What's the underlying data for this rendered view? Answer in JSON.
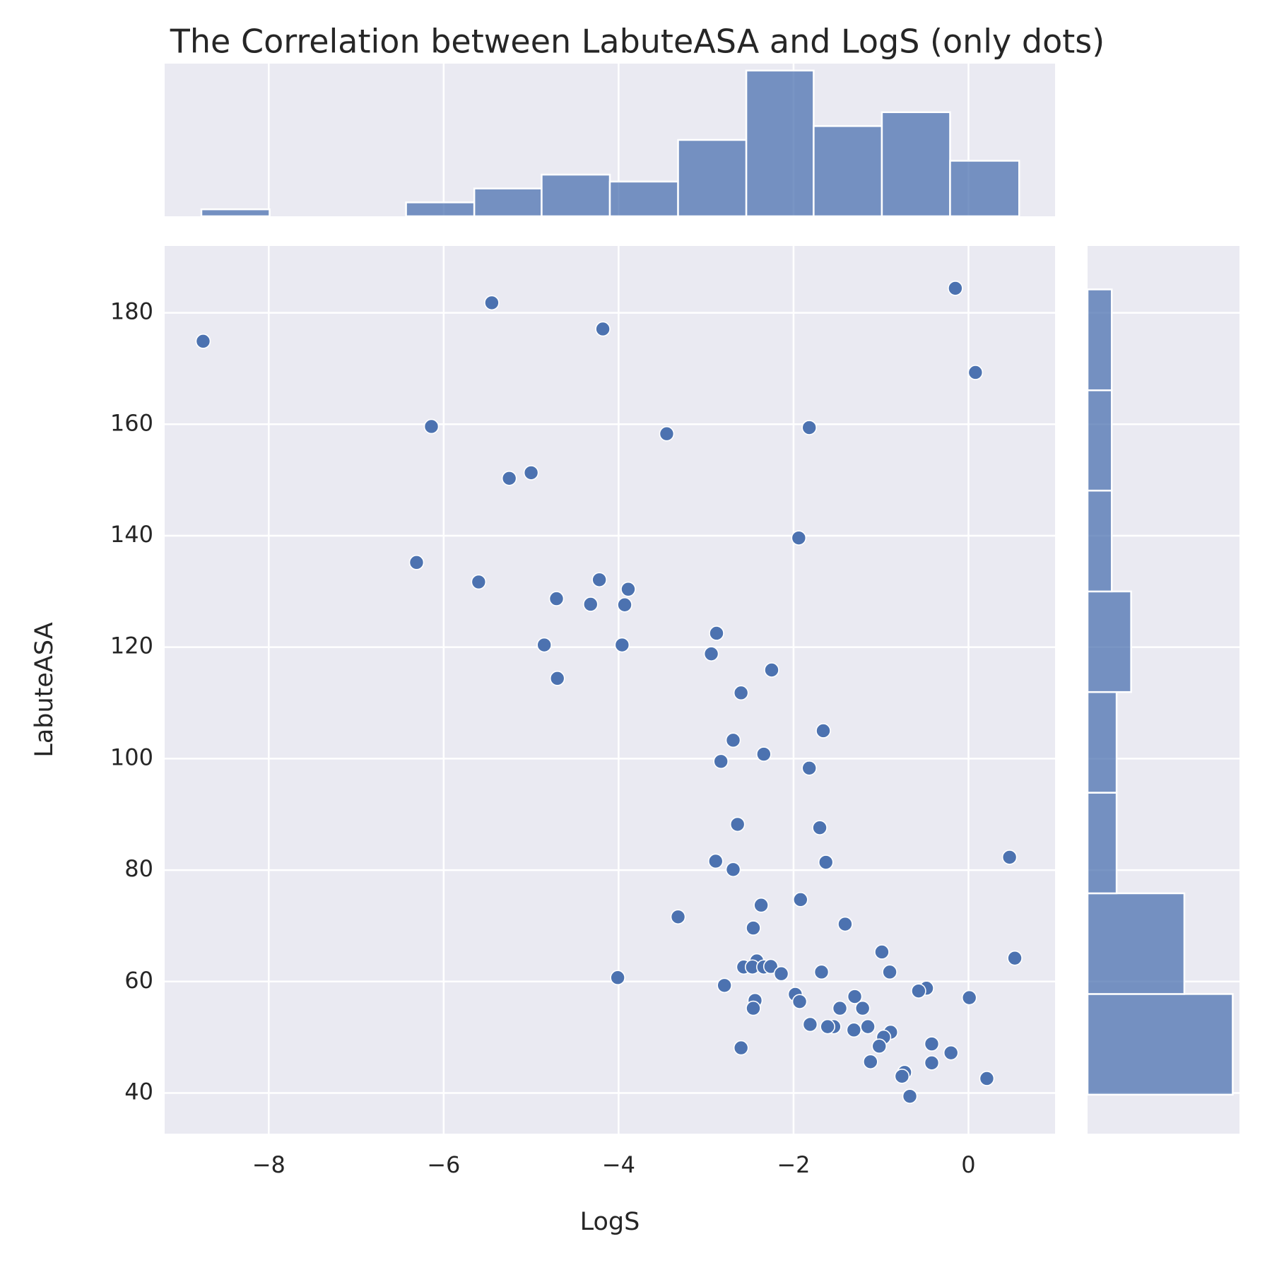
{
  "chart_data": [
    {
      "type": "scatter",
      "title": "The Correlation between LabuteASA and LogS (only dots)",
      "x_label": "LogS",
      "y_label": "LabuteASA",
      "color": "#4c72b0",
      "x": [
        -8.75,
        -5.45,
        -4.18,
        -0.15,
        0.08,
        -6.14,
        -3.45,
        -1.82,
        -5.25,
        -5.0,
        -1.94,
        -6.31,
        -5.6,
        -4.22,
        -3.89,
        -4.71,
        -4.32,
        -3.93,
        -2.88,
        -4.85,
        -3.96,
        -2.94,
        -2.25,
        -4.7,
        -2.6,
        -1.66,
        -2.69,
        -2.34,
        -2.83,
        -1.82,
        -2.64,
        -1.7,
        0.47,
        -2.89,
        -1.63,
        -2.69,
        -1.92,
        -2.37,
        -3.32,
        -1.41,
        -2.46,
        -0.99,
        0.53,
        -2.42,
        -2.57,
        -2.47,
        -2.34,
        -2.26,
        -2.14,
        -1.68,
        -0.9,
        -4.01,
        -2.79,
        -0.48,
        -0.57,
        -1.98,
        0.01,
        -1.3,
        -2.44,
        -1.93,
        -1.47,
        -1.21,
        -2.46,
        -1.81,
        -1.54,
        -1.61,
        -1.15,
        -1.31,
        -0.89,
        -0.97,
        -0.42,
        -1.02,
        -0.2,
        -2.6,
        -0.42,
        -1.12,
        -0.73,
        -0.76,
        0.21,
        -0.67
      ],
      "values": [
        174.9,
        181.8,
        177.1,
        184.4,
        169.3,
        159.6,
        158.3,
        159.4,
        150.3,
        151.3,
        139.6,
        135.2,
        131.7,
        132.1,
        130.4,
        128.7,
        127.7,
        127.6,
        122.5,
        120.4,
        120.4,
        118.8,
        115.9,
        114.4,
        111.8,
        105.0,
        103.3,
        100.8,
        99.5,
        98.3,
        88.2,
        87.6,
        82.3,
        81.6,
        81.4,
        80.1,
        74.7,
        73.7,
        71.6,
        70.3,
        69.6,
        65.3,
        64.2,
        63.7,
        62.6,
        62.6,
        62.6,
        62.7,
        61.4,
        61.7,
        61.7,
        60.7,
        59.3,
        58.8,
        58.3,
        57.7,
        57.1,
        57.3,
        56.6,
        56.4,
        55.2,
        55.2,
        55.2,
        52.3,
        51.9,
        51.9,
        51.9,
        51.3,
        50.9,
        50.0,
        48.8,
        48.4,
        47.2,
        48.1,
        45.4,
        45.6,
        43.7,
        43.0,
        42.6,
        39.4
      ],
      "xlim": [
        -9.19,
        0.99
      ],
      "ylim": [
        32.7,
        192.0
      ],
      "xticks": [
        {
          "value": -8,
          "label": "−8"
        },
        {
          "value": -6,
          "label": "−6"
        },
        {
          "value": -4,
          "label": "−4"
        },
        {
          "value": -2,
          "label": "−2"
        },
        0
      ],
      "yticks": [
        40,
        60,
        80,
        100,
        120,
        140,
        160,
        180
      ],
      "grid": true
    },
    {
      "type": "histogram",
      "orientation": "vertical",
      "color": "#4c72b0",
      "bins": [
        -8.77,
        -7.99,
        -7.21,
        -6.43,
        -5.65,
        -4.88,
        -4.1,
        -3.32,
        -2.54,
        -1.77,
        -0.99,
        -0.21,
        0.58
      ],
      "values": [
        1,
        0,
        0,
        2,
        4,
        6,
        5,
        11,
        21,
        13,
        15,
        8
      ],
      "ylim": [
        0,
        22
      ]
    },
    {
      "type": "histogram",
      "orientation": "horizontal",
      "color": "#4c72b0",
      "bins": [
        39.7,
        57.76,
        75.83,
        93.89,
        111.95,
        130.0,
        148.1,
        166.1,
        184.2
      ],
      "values": [
        30,
        20,
        6,
        6,
        9,
        5,
        5,
        5
      ],
      "xlim": [
        0,
        31.4
      ]
    }
  ]
}
